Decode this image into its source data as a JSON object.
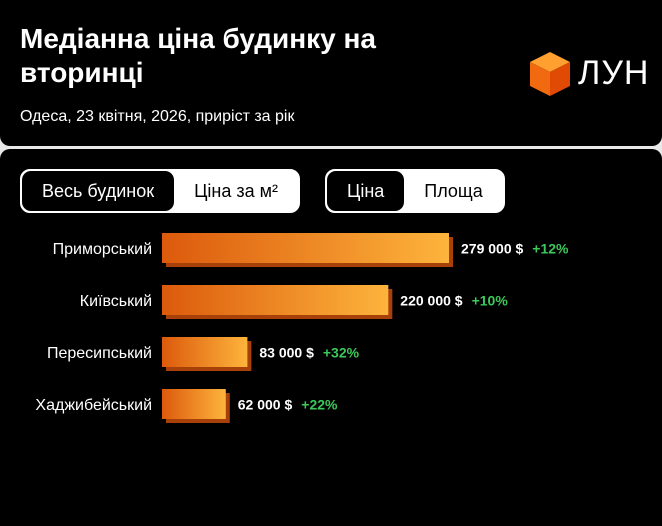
{
  "header": {
    "title": "Медіанна ціна будинку на вторинці",
    "subtitle": "Одеса, 23 квітня, 2026, приріст за рік",
    "logo": "ЛУН"
  },
  "toggles": [
    [
      "Весь будинок",
      "Ціна за м²"
    ],
    [
      "Ціна",
      "Площа"
    ]
  ],
  "chart_data": {
    "type": "bar",
    "orientation": "horizontal",
    "categories": [
      "Приморський",
      "Київський",
      "Пересипський",
      "Хаджибейський"
    ],
    "series": [
      {
        "name": "Ціна",
        "color": "#f07818",
        "values": [
          279000,
          220000,
          83000,
          62000
        ],
        "value_labels": [
          "279 000 $",
          "220 000 $",
          "83 000 $",
          "62 000 $"
        ]
      }
    ],
    "changes": [
      "+12%",
      "+10%",
      "+32%",
      "+22%"
    ]
  }
}
